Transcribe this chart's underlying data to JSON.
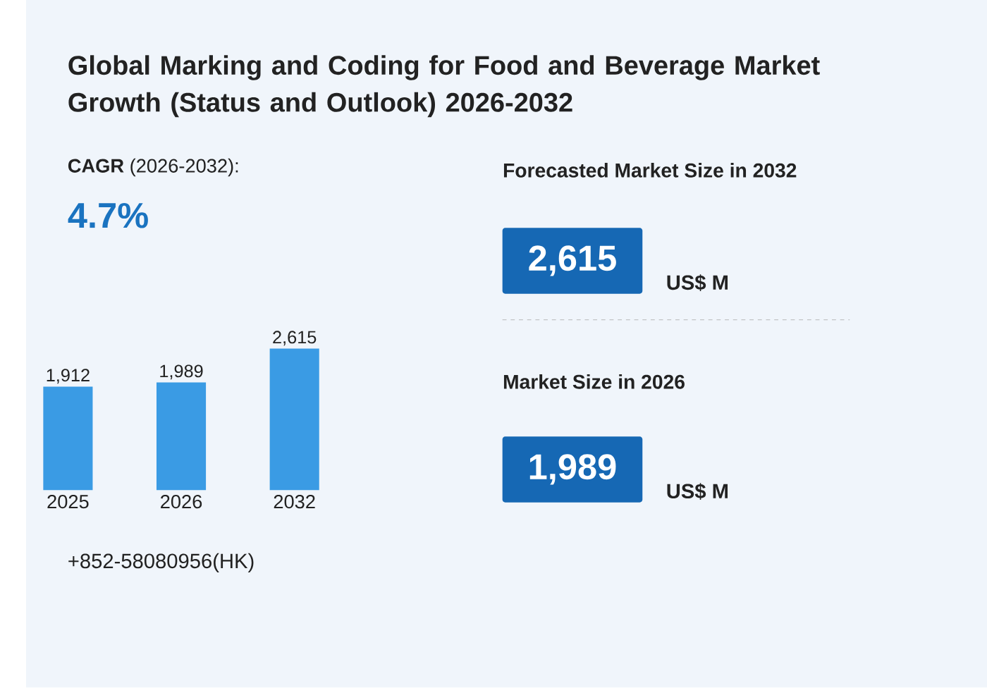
{
  "chart_data": {
    "type": "bar",
    "title": "Global Marking and Coding for Food and Beverage Market Growth (Status and Outlook) 2026-2032",
    "categories": [
      "2025",
      "2026",
      "2032"
    ],
    "values": [
      1912,
      1989,
      2615
    ],
    "value_labels": [
      "1,912",
      "1,989",
      "2,615"
    ],
    "color": "#3a9be4",
    "annotations": [
      "**CAGR** (2026-2032):",
      "4.7%",
      "Forecasted Market Size in 2032",
      "2,615",
      "US$ M",
      "Market Size in 2026",
      "1,989",
      "US$ M",
      "+852-58080956(HK)"
    ]
  }
}
